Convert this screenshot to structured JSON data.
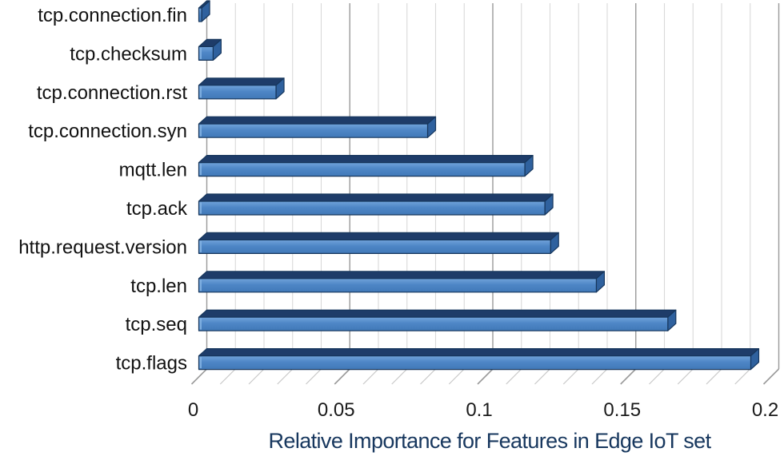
{
  "chart_data": {
    "type": "bar",
    "orientation": "horizontal",
    "style": "3d-excel",
    "title": "",
    "xlabel": "Relative Importance for Features in Edge IoT set",
    "ylabel": "",
    "categories": [
      "tcp.connection.fin",
      "tcp.checksum",
      "tcp.connection.rst",
      "tcp.connection.syn",
      "mqtt.len",
      "tcp.ack",
      "http.request.version",
      "tcp.len",
      "tcp.seq",
      "tcp.flags"
    ],
    "values": [
      0.001,
      0.005,
      0.027,
      0.08,
      0.114,
      0.121,
      0.123,
      0.139,
      0.164,
      0.193
    ],
    "xlim": [
      0,
      0.2
    ],
    "x_major_ticks": [
      0,
      0.05,
      0.1,
      0.15,
      0.2
    ],
    "x_tick_labels": [
      "0",
      "0.05",
      "0.1",
      "0.15",
      "0.2"
    ],
    "x_minor_step": 0.01,
    "grid": "vertical-major-and-minor",
    "legend": "none",
    "colors": {
      "bar_front": "#4e86c6",
      "bar_front_light": "#71a3da",
      "bar_front_dark": "#4179b8",
      "bar_bevel": "#85b4e4",
      "bar_top": "#1e3c69",
      "bar_side": "#2f619e",
      "bar_outline": "#16365c",
      "grid_major": "#9a9a9a",
      "grid_minor": "#d9d9d9",
      "floor_minor": "#c9c9c9",
      "title_text": "#17375e",
      "label_text": "#111111"
    }
  }
}
